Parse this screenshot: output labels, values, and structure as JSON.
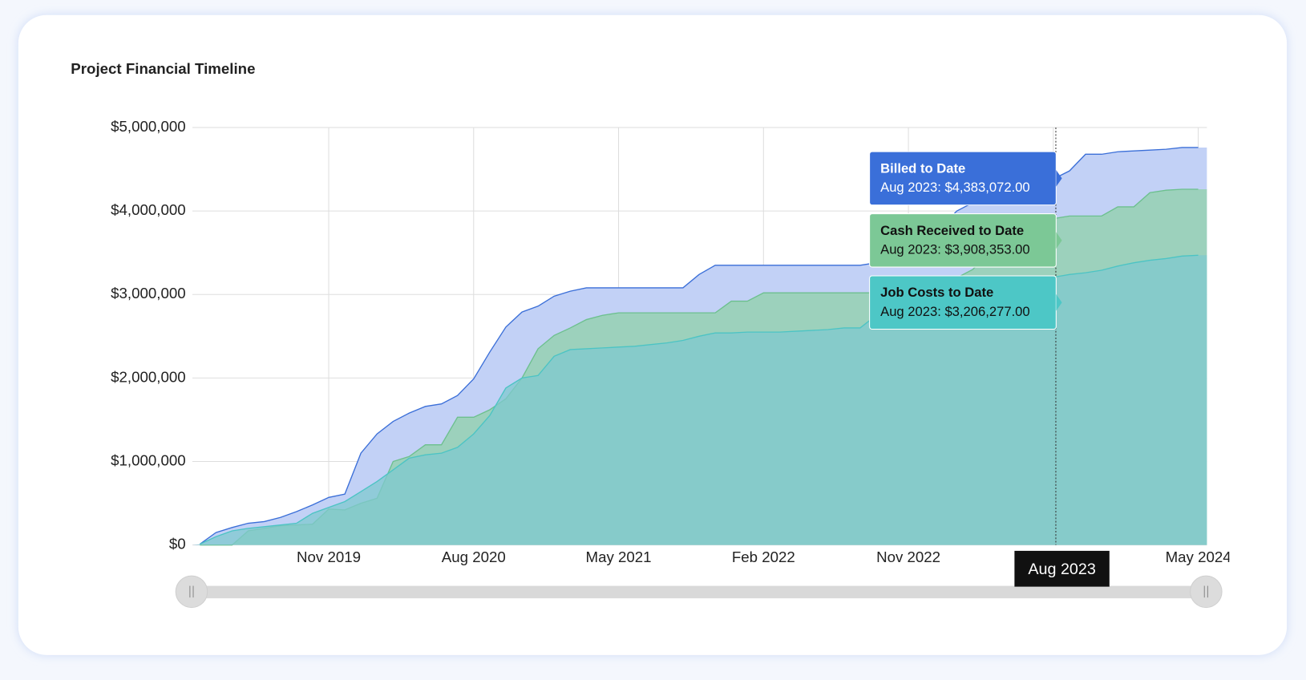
{
  "chart_data": {
    "type": "area",
    "title": "Project Financial Timeline",
    "categories": [
      "Mar 2019",
      "Apr 2019",
      "May 2019",
      "Jun 2019",
      "Jul 2019",
      "Aug 2019",
      "Sep 2019",
      "Oct 2019",
      "Nov 2019",
      "Dec 2019",
      "Jan 2020",
      "Feb 2020",
      "Mar 2020",
      "Apr 2020",
      "May 2020",
      "Jun 2020",
      "Jul 2020",
      "Aug 2020",
      "Sep 2020",
      "Oct 2020",
      "Nov 2020",
      "Dec 2020",
      "Jan 2021",
      "Feb 2021",
      "Mar 2021",
      "Apr 2021",
      "May 2021",
      "Jun 2021",
      "Jul 2021",
      "Aug 2021",
      "Sep 2021",
      "Oct 2021",
      "Nov 2021",
      "Dec 2021",
      "Jan 2022",
      "Feb 2022",
      "Mar 2022",
      "Apr 2022",
      "May 2022",
      "Jun 2022",
      "Jul 2022",
      "Aug 2022",
      "Sep 2022",
      "Oct 2022",
      "Nov 2022",
      "Dec 2022",
      "Jan 2023",
      "Feb 2023",
      "Mar 2023",
      "Apr 2023",
      "May 2023",
      "Jun 2023",
      "Jul 2023",
      "Aug 2023",
      "Sep 2023",
      "Oct 2023",
      "Nov 2023",
      "Dec 2023",
      "Jan 2024",
      "Feb 2024",
      "Mar 2024",
      "Apr 2024",
      "May 2024"
    ],
    "series": [
      {
        "name": "Billed to Date",
        "color": "#3b6fd8",
        "fill": "#c2d1f6",
        "values": [
          10000,
          150000,
          210000,
          260000,
          280000,
          330000,
          400000,
          480000,
          570000,
          610000,
          1100000,
          1330000,
          1480000,
          1580000,
          1660000,
          1690000,
          1790000,
          1990000,
          2310000,
          2610000,
          2790000,
          2860000,
          2980000,
          3040000,
          3080000,
          3080000,
          3080000,
          3080000,
          3080000,
          3080000,
          3080000,
          3240000,
          3350000,
          3350000,
          3350000,
          3350000,
          3350000,
          3350000,
          3350000,
          3350000,
          3350000,
          3350000,
          3380000,
          3420000,
          3450000,
          3600000,
          3800000,
          4000000,
          4100000,
          4200000,
          4250000,
          4300000,
          4340000,
          4383072,
          4480000,
          4680000,
          4680000,
          4710000,
          4720000,
          4730000,
          4740000,
          4760000,
          4760000
        ]
      },
      {
        "name": "Cash Received to Date",
        "color": "#6cc08e",
        "fill": "#8fd0a8",
        "values": [
          0,
          0,
          0,
          170000,
          200000,
          230000,
          240000,
          250000,
          430000,
          420000,
          500000,
          560000,
          1000000,
          1060000,
          1200000,
          1200000,
          1530000,
          1530000,
          1620000,
          1750000,
          2000000,
          2350000,
          2510000,
          2600000,
          2700000,
          2750000,
          2780000,
          2780000,
          2780000,
          2780000,
          2780000,
          2780000,
          2780000,
          2920000,
          2920000,
          3020000,
          3020000,
          3020000,
          3020000,
          3020000,
          3020000,
          3020000,
          3020000,
          3040000,
          3060000,
          3100000,
          3150000,
          3200000,
          3300000,
          3500000,
          3700000,
          3800000,
          3870000,
          3908353,
          3940000,
          3940000,
          3940000,
          4050000,
          4050000,
          4220000,
          4250000,
          4260000,
          4260000
        ]
      },
      {
        "name": "Job Costs to Date",
        "color": "#4cc4c4",
        "fill": "#7fc8cf",
        "values": [
          10000,
          100000,
          170000,
          200000,
          220000,
          240000,
          260000,
          380000,
          450000,
          520000,
          640000,
          760000,
          900000,
          1040000,
          1080000,
          1100000,
          1170000,
          1330000,
          1550000,
          1880000,
          2000000,
          2030000,
          2260000,
          2340000,
          2350000,
          2360000,
          2370000,
          2380000,
          2400000,
          2420000,
          2450000,
          2500000,
          2540000,
          2540000,
          2550000,
          2550000,
          2550000,
          2560000,
          2570000,
          2580000,
          2600000,
          2600000,
          2750000,
          2900000,
          2950000,
          3000000,
          3050000,
          3080000,
          3100000,
          3130000,
          3160000,
          3180000,
          3195000,
          3206277,
          3240000,
          3260000,
          3290000,
          3340000,
          3380000,
          3410000,
          3430000,
          3460000,
          3470000
        ]
      }
    ],
    "ylim": [
      0,
      5000000
    ],
    "yticks": [
      {
        "value": 0,
        "label": "$0"
      },
      {
        "value": 1000000,
        "label": "$1,000,000"
      },
      {
        "value": 2000000,
        "label": "$2,000,000"
      },
      {
        "value": 3000000,
        "label": "$3,000,000"
      },
      {
        "value": 4000000,
        "label": "$4,000,000"
      },
      {
        "value": 5000000,
        "label": "$5,000,000"
      }
    ],
    "xticks": [
      "Nov 2019",
      "Aug 2020",
      "May 2021",
      "Feb 2022",
      "Nov 2022",
      "Aug 2023",
      "May 2024"
    ],
    "grid": true,
    "tooltip": {
      "category": "Aug 2023",
      "labels": [
        "Aug 2023: $4,383,072.00",
        "Aug 2023: $3,908,353.00",
        "Aug 2023: $3,206,277.00"
      ]
    }
  }
}
